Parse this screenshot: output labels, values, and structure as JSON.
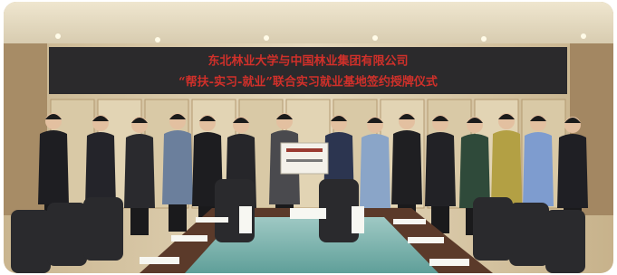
{
  "banner": {
    "line1": "东北林业大学与中国林业集团有限公司",
    "line2": "“帮扶-实习-就业”联合实习就业基地签约授牌仪式"
  }
}
